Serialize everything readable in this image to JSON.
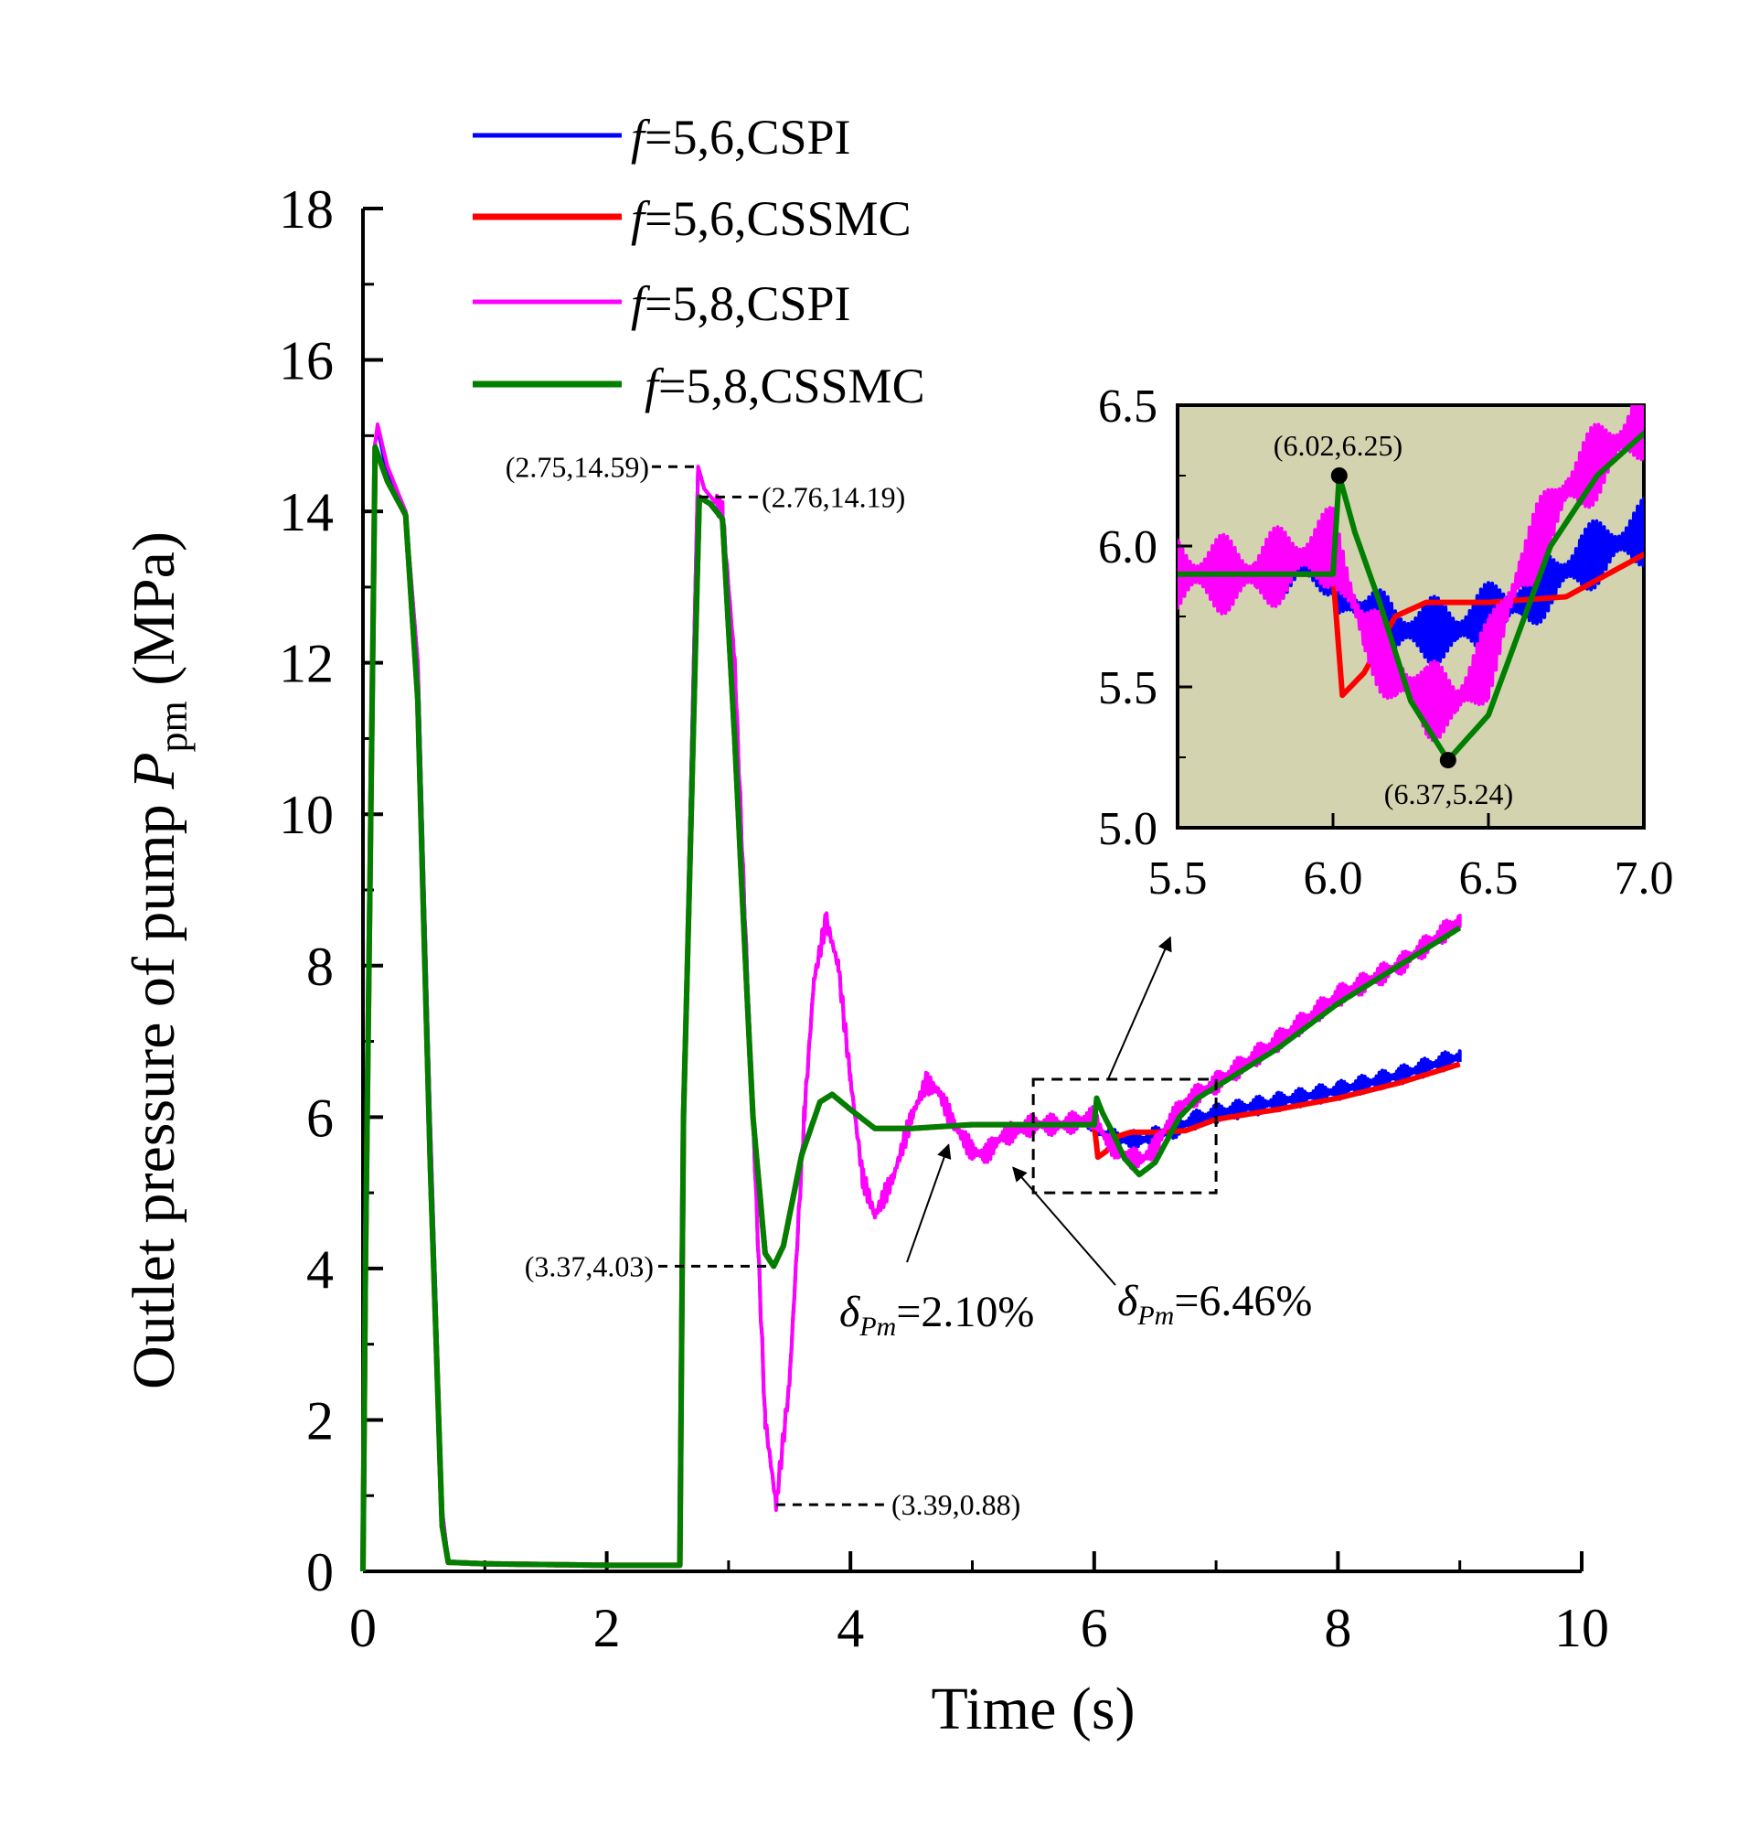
{
  "chart_data": {
    "type": "line",
    "title": "",
    "xlabel": "Time (s)",
    "ylabel": {
      "prefix": "Outlet pressure of pump  ",
      "symbol": "P",
      "subscript": "pm",
      "unit": " (MPa)"
    },
    "xlim": [
      0,
      10
    ],
    "ylim": [
      0,
      18
    ],
    "xticks": [
      0,
      2,
      4,
      6,
      8,
      10
    ],
    "yticks": [
      0,
      2,
      4,
      6,
      8,
      10,
      12,
      14,
      16,
      18
    ],
    "legend": {
      "position": "top",
      "entries": [
        {
          "italic": "f",
          "rest": "=5,6,CSPI",
          "color": "#0000ff"
        },
        {
          "italic": "f",
          "rest": "=5,6,CSSMC",
          "color": "#ff0000"
        },
        {
          "italic": "f",
          "rest": "=5,8,CSPI",
          "color": "#ff00ff"
        },
        {
          "italic": "f",
          "rest": "=5,8,CSSMC",
          "color": "#007f00"
        }
      ]
    },
    "series": [
      {
        "name": "f=5,6,CSPI",
        "color": "#0000ff",
        "width": 4,
        "noise": 0.12,
        "points": [
          [
            0,
            0
          ],
          [
            0.02,
            4
          ],
          [
            0.1,
            14.9
          ],
          [
            0.12,
            15.1
          ],
          [
            0.2,
            14.5
          ],
          [
            0.35,
            14.0
          ],
          [
            0.45,
            12.0
          ],
          [
            0.55,
            6.0
          ],
          [
            0.65,
            0.8
          ],
          [
            0.7,
            0.12
          ],
          [
            1.0,
            0.1
          ],
          [
            2.0,
            0.08
          ],
          [
            2.6,
            0.08
          ],
          [
            2.63,
            6
          ],
          [
            2.75,
            14.59
          ],
          [
            2.8,
            14.3
          ],
          [
            2.95,
            14.0
          ],
          [
            3.05,
            12.0
          ],
          [
            3.2,
            6.0
          ],
          [
            3.3,
            2.0
          ],
          [
            3.39,
            0.88
          ],
          [
            3.5,
            2.5
          ],
          [
            3.62,
            6.0
          ],
          [
            3.7,
            7.8
          ],
          [
            3.8,
            8.6
          ],
          [
            3.9,
            8.0
          ],
          [
            4.0,
            6.5
          ],
          [
            4.1,
            5.2
          ],
          [
            4.2,
            4.7
          ],
          [
            4.35,
            5.2
          ],
          [
            4.5,
            6.0
          ],
          [
            4.62,
            6.45
          ],
          [
            4.72,
            6.35
          ],
          [
            4.85,
            5.9
          ],
          [
            5.0,
            5.55
          ],
          [
            5.1,
            5.5
          ],
          [
            5.25,
            5.75
          ],
          [
            5.5,
            5.9
          ],
          [
            5.75,
            5.9
          ],
          [
            6.0,
            5.95
          ],
          [
            6.02,
            5.85
          ],
          [
            6.1,
            5.75
          ],
          [
            6.2,
            5.7
          ],
          [
            6.4,
            5.7
          ],
          [
            6.6,
            5.8
          ],
          [
            6.8,
            5.95
          ],
          [
            7.0,
            6.05
          ],
          [
            7.5,
            6.2
          ],
          [
            8.0,
            6.35
          ],
          [
            8.5,
            6.55
          ],
          [
            9.0,
            6.8
          ]
        ]
      },
      {
        "name": "f=5,6,CSSMC",
        "color": "#ff0000",
        "width": 6,
        "noise": 0,
        "points": [
          [
            0,
            0
          ],
          [
            0.02,
            4
          ],
          [
            0.1,
            14.85
          ],
          [
            0.2,
            14.4
          ],
          [
            0.35,
            13.95
          ],
          [
            0.45,
            11.5
          ],
          [
            0.55,
            5.5
          ],
          [
            0.65,
            0.6
          ],
          [
            0.7,
            0.12
          ],
          [
            1.0,
            0.1
          ],
          [
            2.0,
            0.08
          ],
          [
            2.6,
            0.08
          ],
          [
            2.63,
            6
          ],
          [
            2.76,
            14.19
          ],
          [
            2.85,
            14.1
          ],
          [
            2.95,
            13.9
          ],
          [
            3.05,
            11.0
          ],
          [
            3.2,
            6.0
          ],
          [
            3.3,
            4.2
          ],
          [
            3.37,
            4.03
          ],
          [
            3.45,
            4.3
          ],
          [
            3.6,
            5.5
          ],
          [
            3.75,
            6.2
          ],
          [
            3.85,
            6.3
          ],
          [
            4.0,
            6.1
          ],
          [
            4.2,
            5.85
          ],
          [
            4.5,
            5.85
          ],
          [
            5.0,
            5.9
          ],
          [
            5.5,
            5.9
          ],
          [
            6.0,
            5.9
          ],
          [
            6.03,
            5.47
          ],
          [
            6.1,
            5.55
          ],
          [
            6.2,
            5.75
          ],
          [
            6.3,
            5.8
          ],
          [
            6.5,
            5.8
          ],
          [
            6.75,
            5.82
          ],
          [
            7.0,
            5.97
          ],
          [
            7.5,
            6.1
          ],
          [
            8.0,
            6.25
          ],
          [
            8.5,
            6.45
          ],
          [
            9.0,
            6.7
          ]
        ]
      },
      {
        "name": "f=5,8,CSPI",
        "color": "#ff00ff",
        "width": 4,
        "noise": 0.14,
        "points": [
          [
            0,
            0
          ],
          [
            0.02,
            4
          ],
          [
            0.1,
            14.9
          ],
          [
            0.12,
            15.15
          ],
          [
            0.2,
            14.6
          ],
          [
            0.35,
            14.0
          ],
          [
            0.45,
            12.0
          ],
          [
            0.55,
            6.0
          ],
          [
            0.65,
            0.8
          ],
          [
            0.7,
            0.12
          ],
          [
            1.0,
            0.1
          ],
          [
            2.0,
            0.08
          ],
          [
            2.6,
            0.08
          ],
          [
            2.63,
            6
          ],
          [
            2.75,
            14.59
          ],
          [
            2.8,
            14.3
          ],
          [
            2.95,
            14.0
          ],
          [
            3.05,
            12.0
          ],
          [
            3.2,
            6.0
          ],
          [
            3.3,
            2.0
          ],
          [
            3.39,
            0.88
          ],
          [
            3.5,
            2.5
          ],
          [
            3.62,
            6.0
          ],
          [
            3.7,
            7.8
          ],
          [
            3.8,
            8.6
          ],
          [
            3.9,
            8.0
          ],
          [
            4.0,
            6.5
          ],
          [
            4.1,
            5.2
          ],
          [
            4.2,
            4.7
          ],
          [
            4.35,
            5.2
          ],
          [
            4.5,
            6.0
          ],
          [
            4.62,
            6.45
          ],
          [
            4.72,
            6.35
          ],
          [
            4.85,
            5.9
          ],
          [
            5.0,
            5.55
          ],
          [
            5.1,
            5.5
          ],
          [
            5.25,
            5.75
          ],
          [
            5.5,
            5.9
          ],
          [
            5.75,
            5.9
          ],
          [
            6.0,
            6.0
          ],
          [
            6.1,
            5.7
          ],
          [
            6.2,
            5.55
          ],
          [
            6.3,
            5.45
          ],
          [
            6.4,
            5.45
          ],
          [
            6.5,
            5.6
          ],
          [
            6.6,
            5.9
          ],
          [
            6.75,
            6.2
          ],
          [
            7.0,
            6.45
          ],
          [
            7.5,
            7.0
          ],
          [
            8.0,
            7.6
          ],
          [
            8.5,
            8.0
          ],
          [
            9.0,
            8.6
          ]
        ]
      },
      {
        "name": "f=5,8,CSSMC",
        "color": "#007f00",
        "width": 6,
        "noise": 0,
        "points": [
          [
            0,
            0
          ],
          [
            0.02,
            4
          ],
          [
            0.1,
            14.85
          ],
          [
            0.2,
            14.4
          ],
          [
            0.35,
            13.95
          ],
          [
            0.45,
            11.5
          ],
          [
            0.55,
            5.5
          ],
          [
            0.65,
            0.6
          ],
          [
            0.7,
            0.12
          ],
          [
            1.0,
            0.1
          ],
          [
            2.0,
            0.08
          ],
          [
            2.6,
            0.08
          ],
          [
            2.63,
            6
          ],
          [
            2.76,
            14.19
          ],
          [
            2.85,
            14.1
          ],
          [
            2.95,
            13.9
          ],
          [
            3.05,
            11.0
          ],
          [
            3.2,
            6.0
          ],
          [
            3.3,
            4.2
          ],
          [
            3.37,
            4.03
          ],
          [
            3.45,
            4.3
          ],
          [
            3.6,
            5.5
          ],
          [
            3.75,
            6.2
          ],
          [
            3.85,
            6.3
          ],
          [
            4.0,
            6.1
          ],
          [
            4.2,
            5.85
          ],
          [
            4.5,
            5.85
          ],
          [
            5.0,
            5.9
          ],
          [
            5.5,
            5.9
          ],
          [
            6.0,
            5.9
          ],
          [
            6.02,
            6.25
          ],
          [
            6.07,
            6.05
          ],
          [
            6.15,
            5.8
          ],
          [
            6.25,
            5.45
          ],
          [
            6.37,
            5.24
          ],
          [
            6.5,
            5.4
          ],
          [
            6.6,
            5.7
          ],
          [
            6.7,
            6.0
          ],
          [
            6.85,
            6.25
          ],
          [
            7.0,
            6.4
          ],
          [
            7.5,
            6.9
          ],
          [
            8.0,
            7.5
          ],
          [
            8.5,
            8.0
          ],
          [
            9.0,
            8.5
          ]
        ]
      }
    ],
    "annotations": [
      {
        "text": "(2.75,14.59)",
        "x": 2.75,
        "y": 14.59
      },
      {
        "text": "(2.76,14.19)",
        "x": 2.76,
        "y": 14.19
      },
      {
        "text": "(3.37,4.03)",
        "x": 3.37,
        "y": 4.03
      },
      {
        "text": "(3.39,0.88)",
        "x": 3.39,
        "y": 0.88
      }
    ],
    "deltas": [
      {
        "symbol": "δ",
        "sub": "Pm",
        "value": "=2.10%",
        "target_x": 4.7,
        "target_y": 5.85
      },
      {
        "symbol": "δ",
        "sub": "Pm",
        "value": "=6.46%",
        "target_x": 5.2,
        "target_y": 5.55
      }
    ],
    "zoom_box": {
      "xlim": [
        5.5,
        7.0
      ],
      "ylim": [
        5.0,
        6.5
      ]
    },
    "inset": {
      "background": "#d3d3b0",
      "xlim": [
        5.5,
        7.0
      ],
      "ylim": [
        5.0,
        6.5
      ],
      "xticks": [
        "5.5",
        "6.0",
        "6.5",
        "7.0"
      ],
      "yticks": [
        "5.0",
        "5.5",
        "6.0",
        "6.5"
      ],
      "points": [
        {
          "text": "(6.02,6.25)",
          "x": 6.02,
          "y": 6.25
        },
        {
          "text": "(6.37,5.24)",
          "x": 6.37,
          "y": 5.24
        }
      ]
    }
  }
}
